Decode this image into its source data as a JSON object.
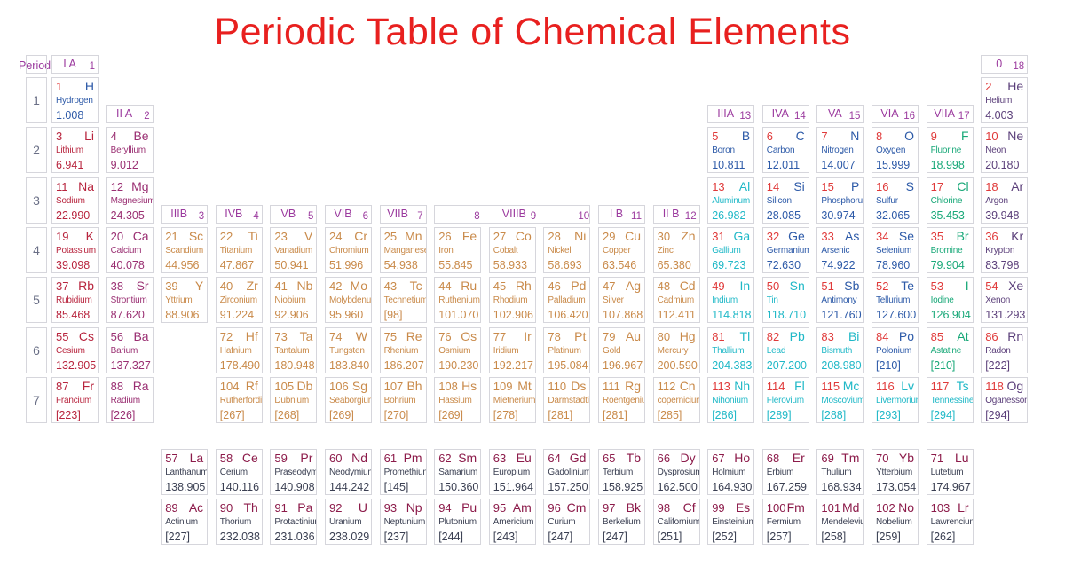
{
  "title": "Periodic Table of Chemical Elements",
  "periods_label": "Periods",
  "period_numbers": [
    "1",
    "2",
    "3",
    "4",
    "5",
    "6",
    "7"
  ],
  "groups": {
    "g1": {
      "roman": "I A",
      "arabic": "1"
    },
    "g2": {
      "roman": "II A",
      "arabic": "2"
    },
    "g3": {
      "roman": "IIIB",
      "arabic": "3"
    },
    "g4": {
      "roman": "IVB",
      "arabic": "4"
    },
    "g5": {
      "roman": "VB",
      "arabic": "5"
    },
    "g6": {
      "roman": "VIB",
      "arabic": "6"
    },
    "g7": {
      "roman": "VIIB",
      "arabic": "7"
    },
    "g8": {
      "roman": "VIIIB",
      "arabic8": "8",
      "arabic9": "9",
      "arabic10": "10"
    },
    "g11": {
      "roman": "I B",
      "arabic": "11"
    },
    "g12": {
      "roman": "II B",
      "arabic": "12"
    },
    "g13": {
      "roman": "IIIA",
      "arabic": "13"
    },
    "g14": {
      "roman": "IVA",
      "arabic": "14"
    },
    "g15": {
      "roman": "VA",
      "arabic": "15"
    },
    "g16": {
      "roman": "VIA",
      "arabic": "16"
    },
    "g17": {
      "roman": "VIIA",
      "arabic": "17"
    },
    "g18": {
      "roman": "0",
      "arabic": "18"
    }
  },
  "colors": {
    "hydrogen": "#2e5aa8",
    "alkali": "#b8253e",
    "alkaline": "#9a2f72",
    "transition": "#c98a4a",
    "post_transition": "#1fb8c7",
    "metalloid": "#2d5aa8",
    "nonmetal": "#2d5aa8",
    "halogen": "#18a878",
    "noble": "#5b3f7a",
    "lanthanide": "#8c1b4a",
    "lanthanide_text": "#3a3f52",
    "number_red": "#e03a3a",
    "unknown": "#5a8aa8",
    "accent": "#e8201f"
  },
  "elements": [
    {
      "z": "1",
      "sym": "H",
      "name": "Hydrogen",
      "mass": "1.008",
      "g": 1,
      "p": 1,
      "cat": "hydrogen"
    },
    {
      "z": "2",
      "sym": "He",
      "name": "Helium",
      "mass": "4.003",
      "g": 18,
      "p": 1,
      "cat": "noble"
    },
    {
      "z": "3",
      "sym": "Li",
      "name": "Lithium",
      "mass": "6.941",
      "g": 1,
      "p": 2,
      "cat": "alkali"
    },
    {
      "z": "4",
      "sym": "Be",
      "name": "Beryllium",
      "mass": "9.012",
      "g": 2,
      "p": 2,
      "cat": "alkaline"
    },
    {
      "z": "5",
      "sym": "B",
      "name": "Boron",
      "mass": "10.811",
      "g": 13,
      "p": 2,
      "cat": "metalloid"
    },
    {
      "z": "6",
      "sym": "C",
      "name": "Carbon",
      "mass": "12.011",
      "g": 14,
      "p": 2,
      "cat": "nonmetal"
    },
    {
      "z": "7",
      "sym": "N",
      "name": "Nitrogen",
      "mass": "14.007",
      "g": 15,
      "p": 2,
      "cat": "nonmetal"
    },
    {
      "z": "8",
      "sym": "O",
      "name": "Oxygen",
      "mass": "15.999",
      "g": 16,
      "p": 2,
      "cat": "nonmetal"
    },
    {
      "z": "9",
      "sym": "F",
      "name": "Fluorine",
      "mass": "18.998",
      "g": 17,
      "p": 2,
      "cat": "halogen"
    },
    {
      "z": "10",
      "sym": "Ne",
      "name": "Neon",
      "mass": "20.180",
      "g": 18,
      "p": 2,
      "cat": "noble"
    },
    {
      "z": "11",
      "sym": "Na",
      "name": "Sodium",
      "mass": "22.990",
      "g": 1,
      "p": 3,
      "cat": "alkali"
    },
    {
      "z": "12",
      "sym": "Mg",
      "name": "Magnesium",
      "mass": "24.305",
      "g": 2,
      "p": 3,
      "cat": "alkaline"
    },
    {
      "z": "13",
      "sym": "Al",
      "name": "Aluminum",
      "mass": "26.982",
      "g": 13,
      "p": 3,
      "cat": "post_transition"
    },
    {
      "z": "14",
      "sym": "Si",
      "name": "Silicon",
      "mass": "28.085",
      "g": 14,
      "p": 3,
      "cat": "metalloid"
    },
    {
      "z": "15",
      "sym": "P",
      "name": "Phosphorus",
      "mass": "30.974",
      "g": 15,
      "p": 3,
      "cat": "nonmetal"
    },
    {
      "z": "16",
      "sym": "S",
      "name": "Sulfur",
      "mass": "32.065",
      "g": 16,
      "p": 3,
      "cat": "nonmetal"
    },
    {
      "z": "17",
      "sym": "Cl",
      "name": "Chlorine",
      "mass": "35.453",
      "g": 17,
      "p": 3,
      "cat": "halogen"
    },
    {
      "z": "18",
      "sym": "Ar",
      "name": "Argon",
      "mass": "39.948",
      "g": 18,
      "p": 3,
      "cat": "noble"
    },
    {
      "z": "19",
      "sym": "K",
      "name": "Potassium",
      "mass": "39.098",
      "g": 1,
      "p": 4,
      "cat": "alkali"
    },
    {
      "z": "20",
      "sym": "Ca",
      "name": "Calcium",
      "mass": "40.078",
      "g": 2,
      "p": 4,
      "cat": "alkaline"
    },
    {
      "z": "21",
      "sym": "Sc",
      "name": "Scandium",
      "mass": "44.956",
      "g": 3,
      "p": 4,
      "cat": "transition"
    },
    {
      "z": "22",
      "sym": "Ti",
      "name": "Titanium",
      "mass": "47.867",
      "g": 4,
      "p": 4,
      "cat": "transition"
    },
    {
      "z": "23",
      "sym": "V",
      "name": "Vanadium",
      "mass": "50.941",
      "g": 5,
      "p": 4,
      "cat": "transition"
    },
    {
      "z": "24",
      "sym": "Cr",
      "name": "Chromium",
      "mass": "51.996",
      "g": 6,
      "p": 4,
      "cat": "transition"
    },
    {
      "z": "25",
      "sym": "Mn",
      "name": "Manganese",
      "mass": "54.938",
      "g": 7,
      "p": 4,
      "cat": "transition"
    },
    {
      "z": "26",
      "sym": "Fe",
      "name": "Iron",
      "mass": "55.845",
      "g": 8,
      "p": 4,
      "cat": "transition"
    },
    {
      "z": "27",
      "sym": "Co",
      "name": "Cobalt",
      "mass": "58.933",
      "g": 9,
      "p": 4,
      "cat": "transition"
    },
    {
      "z": "28",
      "sym": "Ni",
      "name": "Nickel",
      "mass": "58.693",
      "g": 10,
      "p": 4,
      "cat": "transition"
    },
    {
      "z": "29",
      "sym": "Cu",
      "name": "Copper",
      "mass": "63.546",
      "g": 11,
      "p": 4,
      "cat": "transition"
    },
    {
      "z": "30",
      "sym": "Zn",
      "name": "Zinc",
      "mass": "65.380",
      "g": 12,
      "p": 4,
      "cat": "transition"
    },
    {
      "z": "31",
      "sym": "Ga",
      "name": "Gallium",
      "mass": "69.723",
      "g": 13,
      "p": 4,
      "cat": "post_transition"
    },
    {
      "z": "32",
      "sym": "Ge",
      "name": "Germanium",
      "mass": "72.630",
      "g": 14,
      "p": 4,
      "cat": "metalloid"
    },
    {
      "z": "33",
      "sym": "As",
      "name": "Arsenic",
      "mass": "74.922",
      "g": 15,
      "p": 4,
      "cat": "metalloid"
    },
    {
      "z": "34",
      "sym": "Se",
      "name": "Selenium",
      "mass": "78.960",
      "g": 16,
      "p": 4,
      "cat": "nonmetal"
    },
    {
      "z": "35",
      "sym": "Br",
      "name": "Bromine",
      "mass": "79.904",
      "g": 17,
      "p": 4,
      "cat": "halogen"
    },
    {
      "z": "36",
      "sym": "Kr",
      "name": "Krypton",
      "mass": "83.798",
      "g": 18,
      "p": 4,
      "cat": "noble"
    },
    {
      "z": "37",
      "sym": "Rb",
      "name": "Rubidium",
      "mass": "85.468",
      "g": 1,
      "p": 5,
      "cat": "alkali"
    },
    {
      "z": "38",
      "sym": "Sr",
      "name": "Strontium",
      "mass": "87.620",
      "g": 2,
      "p": 5,
      "cat": "alkaline"
    },
    {
      "z": "39",
      "sym": "Y",
      "name": "Yttrium",
      "mass": "88.906",
      "g": 3,
      "p": 5,
      "cat": "transition"
    },
    {
      "z": "40",
      "sym": "Zr",
      "name": "Zirconium",
      "mass": "91.224",
      "g": 4,
      "p": 5,
      "cat": "transition"
    },
    {
      "z": "41",
      "sym": "Nb",
      "name": "Niobium",
      "mass": "92.906",
      "g": 5,
      "p": 5,
      "cat": "transition"
    },
    {
      "z": "42",
      "sym": "Mo",
      "name": "Molybdenum",
      "mass": "95.960",
      "g": 6,
      "p": 5,
      "cat": "transition"
    },
    {
      "z": "43",
      "sym": "Tc",
      "name": "Technetium",
      "mass": "[98]",
      "g": 7,
      "p": 5,
      "cat": "transition"
    },
    {
      "z": "44",
      "sym": "Ru",
      "name": "Ruthenium",
      "mass": "101.070",
      "g": 8,
      "p": 5,
      "cat": "transition"
    },
    {
      "z": "45",
      "sym": "Rh",
      "name": "Rhodium",
      "mass": "102.906",
      "g": 9,
      "p": 5,
      "cat": "transition"
    },
    {
      "z": "46",
      "sym": "Pd",
      "name": "Palladium",
      "mass": "106.420",
      "g": 10,
      "p": 5,
      "cat": "transition"
    },
    {
      "z": "47",
      "sym": "Ag",
      "name": "Silver",
      "mass": "107.868",
      "g": 11,
      "p": 5,
      "cat": "transition"
    },
    {
      "z": "48",
      "sym": "Cd",
      "name": "Cadmium",
      "mass": "112.411",
      "g": 12,
      "p": 5,
      "cat": "transition"
    },
    {
      "z": "49",
      "sym": "In",
      "name": "Indium",
      "mass": "114.818",
      "g": 13,
      "p": 5,
      "cat": "post_transition"
    },
    {
      "z": "50",
      "sym": "Sn",
      "name": "Tin",
      "mass": "118.710",
      "g": 14,
      "p": 5,
      "cat": "post_transition"
    },
    {
      "z": "51",
      "sym": "Sb",
      "name": "Antimony",
      "mass": "121.760",
      "g": 15,
      "p": 5,
      "cat": "metalloid"
    },
    {
      "z": "52",
      "sym": "Te",
      "name": "Tellurium",
      "mass": "127.600",
      "g": 16,
      "p": 5,
      "cat": "metalloid"
    },
    {
      "z": "53",
      "sym": "I",
      "name": "Iodine",
      "mass": "126.904",
      "g": 17,
      "p": 5,
      "cat": "halogen"
    },
    {
      "z": "54",
      "sym": "Xe",
      "name": "Xenon",
      "mass": "131.293",
      "g": 18,
      "p": 5,
      "cat": "noble"
    },
    {
      "z": "55",
      "sym": "Cs",
      "name": "Cesium",
      "mass": "132.905",
      "g": 1,
      "p": 6,
      "cat": "alkali"
    },
    {
      "z": "56",
      "sym": "Ba",
      "name": "Barium",
      "mass": "137.327",
      "g": 2,
      "p": 6,
      "cat": "alkaline"
    },
    {
      "z": "72",
      "sym": "Hf",
      "name": "Hafnium",
      "mass": "178.490",
      "g": 4,
      "p": 6,
      "cat": "transition"
    },
    {
      "z": "73",
      "sym": "Ta",
      "name": "Tantalum",
      "mass": "180.948",
      "g": 5,
      "p": 6,
      "cat": "transition"
    },
    {
      "z": "74",
      "sym": "W",
      "name": "Tungsten",
      "mass": "183.840",
      "g": 6,
      "p": 6,
      "cat": "transition"
    },
    {
      "z": "75",
      "sym": "Re",
      "name": "Rhenium",
      "mass": "186.207",
      "g": 7,
      "p": 6,
      "cat": "transition"
    },
    {
      "z": "76",
      "sym": "Os",
      "name": "Osmium",
      "mass": "190.230",
      "g": 8,
      "p": 6,
      "cat": "transition"
    },
    {
      "z": "77",
      "sym": "Ir",
      "name": "Iridium",
      "mass": "192.217",
      "g": 9,
      "p": 6,
      "cat": "transition"
    },
    {
      "z": "78",
      "sym": "Pt",
      "name": "Platinum",
      "mass": "195.084",
      "g": 10,
      "p": 6,
      "cat": "transition"
    },
    {
      "z": "79",
      "sym": "Au",
      "name": "Gold",
      "mass": "196.967",
      "g": 11,
      "p": 6,
      "cat": "transition"
    },
    {
      "z": "80",
      "sym": "Hg",
      "name": "Mercury",
      "mass": "200.590",
      "g": 12,
      "p": 6,
      "cat": "transition"
    },
    {
      "z": "81",
      "sym": "Tl",
      "name": "Thallium",
      "mass": "204.383",
      "g": 13,
      "p": 6,
      "cat": "post_transition"
    },
    {
      "z": "82",
      "sym": "Pb",
      "name": "Lead",
      "mass": "207.200",
      "g": 14,
      "p": 6,
      "cat": "post_transition"
    },
    {
      "z": "83",
      "sym": "Bi",
      "name": "Bismuth",
      "mass": "208.980",
      "g": 15,
      "p": 6,
      "cat": "post_transition"
    },
    {
      "z": "84",
      "sym": "Po",
      "name": "Polonium",
      "mass": "[210]",
      "g": 16,
      "p": 6,
      "cat": "metalloid"
    },
    {
      "z": "85",
      "sym": "At",
      "name": "Astatine",
      "mass": "[210]",
      "g": 17,
      "p": 6,
      "cat": "halogen"
    },
    {
      "z": "86",
      "sym": "Rn",
      "name": "Radon",
      "mass": "[222]",
      "g": 18,
      "p": 6,
      "cat": "noble"
    },
    {
      "z": "87",
      "sym": "Fr",
      "name": "Francium",
      "mass": "[223]",
      "g": 1,
      "p": 7,
      "cat": "alkali"
    },
    {
      "z": "88",
      "sym": "Ra",
      "name": "Radium",
      "mass": "[226]",
      "g": 2,
      "p": 7,
      "cat": "alkaline"
    },
    {
      "z": "104",
      "sym": "Rf",
      "name": "Rutherfordium",
      "mass": "[267]",
      "g": 4,
      "p": 7,
      "cat": "transition"
    },
    {
      "z": "105",
      "sym": "Db",
      "name": "Dubnium",
      "mass": "[268]",
      "g": 5,
      "p": 7,
      "cat": "transition"
    },
    {
      "z": "106",
      "sym": "Sg",
      "name": "Seaborgium",
      "mass": "[269]",
      "g": 6,
      "p": 7,
      "cat": "transition"
    },
    {
      "z": "107",
      "sym": "Bh",
      "name": "Bohrium",
      "mass": "[270]",
      "g": 7,
      "p": 7,
      "cat": "transition"
    },
    {
      "z": "108",
      "sym": "Hs",
      "name": "Hassium",
      "mass": "[269]",
      "g": 8,
      "p": 7,
      "cat": "transition"
    },
    {
      "z": "109",
      "sym": "Mt",
      "name": "Mietnerium",
      "mass": "[278]",
      "g": 9,
      "p": 7,
      "cat": "transition"
    },
    {
      "z": "110",
      "sym": "Ds",
      "name": "Darmstadtium",
      "mass": "[281]",
      "g": 10,
      "p": 7,
      "cat": "transition"
    },
    {
      "z": "111",
      "sym": "Rg",
      "name": "Roentgenium",
      "mass": "[281]",
      "g": 11,
      "p": 7,
      "cat": "transition"
    },
    {
      "z": "112",
      "sym": "Cn",
      "name": "copernicium",
      "mass": "[285]",
      "g": 12,
      "p": 7,
      "cat": "transition"
    },
    {
      "z": "113",
      "sym": "Nh",
      "name": "Nihonium",
      "mass": "[286]",
      "g": 13,
      "p": 7,
      "cat": "unknown"
    },
    {
      "z": "114",
      "sym": "Fl",
      "name": "Flerovium",
      "mass": "[289]",
      "g": 14,
      "p": 7,
      "cat": "unknown"
    },
    {
      "z": "115",
      "sym": "Mc",
      "name": "Moscovium",
      "mass": "[288]",
      "g": 15,
      "p": 7,
      "cat": "unknown"
    },
    {
      "z": "116",
      "sym": "Lv",
      "name": "Livermorium",
      "mass": "[293]",
      "g": 16,
      "p": 7,
      "cat": "unknown"
    },
    {
      "z": "117",
      "sym": "Ts",
      "name": "Tennessine",
      "mass": "[294]",
      "g": 17,
      "p": 7,
      "cat": "unknown"
    },
    {
      "z": "118",
      "sym": "Og",
      "name": "Oganesson",
      "mass": "[294]",
      "g": 18,
      "p": 7,
      "cat": "noble"
    }
  ],
  "lanthanides": [
    {
      "z": "57",
      "sym": "La",
      "name": "Lanthanum",
      "mass": "138.905"
    },
    {
      "z": "58",
      "sym": "Ce",
      "name": "Cerium",
      "mass": "140.116"
    },
    {
      "z": "59",
      "sym": "Pr",
      "name": "Praseodymium",
      "mass": "140.908"
    },
    {
      "z": "60",
      "sym": "Nd",
      "name": "Neodymium",
      "mass": "144.242"
    },
    {
      "z": "61",
      "sym": "Pm",
      "name": "Promethium",
      "mass": "[145]"
    },
    {
      "z": "62",
      "sym": "Sm",
      "name": "Samarium",
      "mass": "150.360"
    },
    {
      "z": "63",
      "sym": "Eu",
      "name": "Europium",
      "mass": "151.964"
    },
    {
      "z": "64",
      "sym": "Gd",
      "name": "Gadolinium",
      "mass": "157.250"
    },
    {
      "z": "65",
      "sym": "Tb",
      "name": "Terbium",
      "mass": "158.925"
    },
    {
      "z": "66",
      "sym": "Dy",
      "name": "Dysprosium",
      "mass": "162.500"
    },
    {
      "z": "67",
      "sym": "Ho",
      "name": "Holmium",
      "mass": "164.930"
    },
    {
      "z": "68",
      "sym": "Er",
      "name": "Erbium",
      "mass": "167.259"
    },
    {
      "z": "69",
      "sym": "Tm",
      "name": "Thulium",
      "mass": "168.934"
    },
    {
      "z": "70",
      "sym": "Yb",
      "name": "Ytterbium",
      "mass": "173.054"
    },
    {
      "z": "71",
      "sym": "Lu",
      "name": "Lutetium",
      "mass": "174.967"
    }
  ],
  "actinides": [
    {
      "z": "89",
      "sym": "Ac",
      "name": "Actinium",
      "mass": "[227]"
    },
    {
      "z": "90",
      "sym": "Th",
      "name": "Thorium",
      "mass": "232.038"
    },
    {
      "z": "91",
      "sym": "Pa",
      "name": "Protactinium",
      "mass": "231.036"
    },
    {
      "z": "92",
      "sym": "U",
      "name": "Uranium",
      "mass": "238.029"
    },
    {
      "z": "93",
      "sym": "Np",
      "name": "Neptunium",
      "mass": "[237]"
    },
    {
      "z": "94",
      "sym": "Pu",
      "name": "Plutonium",
      "mass": "[244]"
    },
    {
      "z": "95",
      "sym": "Am",
      "name": "Americium",
      "mass": "[243]"
    },
    {
      "z": "96",
      "sym": "Cm",
      "name": "Curium",
      "mass": "[247]"
    },
    {
      "z": "97",
      "sym": "Bk",
      "name": "Berkelium",
      "mass": "[247]"
    },
    {
      "z": "98",
      "sym": "Cf",
      "name": "Californium",
      "mass": "[251]"
    },
    {
      "z": "99",
      "sym": "Es",
      "name": "Einsteinium",
      "mass": "[252]"
    },
    {
      "z": "100",
      "sym": "Fm",
      "name": "Fermium",
      "mass": "[257]"
    },
    {
      "z": "101",
      "sym": "Md",
      "name": "Mendelevium",
      "mass": "[258]"
    },
    {
      "z": "102",
      "sym": "No",
      "name": "Nobelium",
      "mass": "[259]"
    },
    {
      "z": "103",
      "sym": "Lr",
      "name": "Lawrencium",
      "mass": "[262]"
    }
  ]
}
